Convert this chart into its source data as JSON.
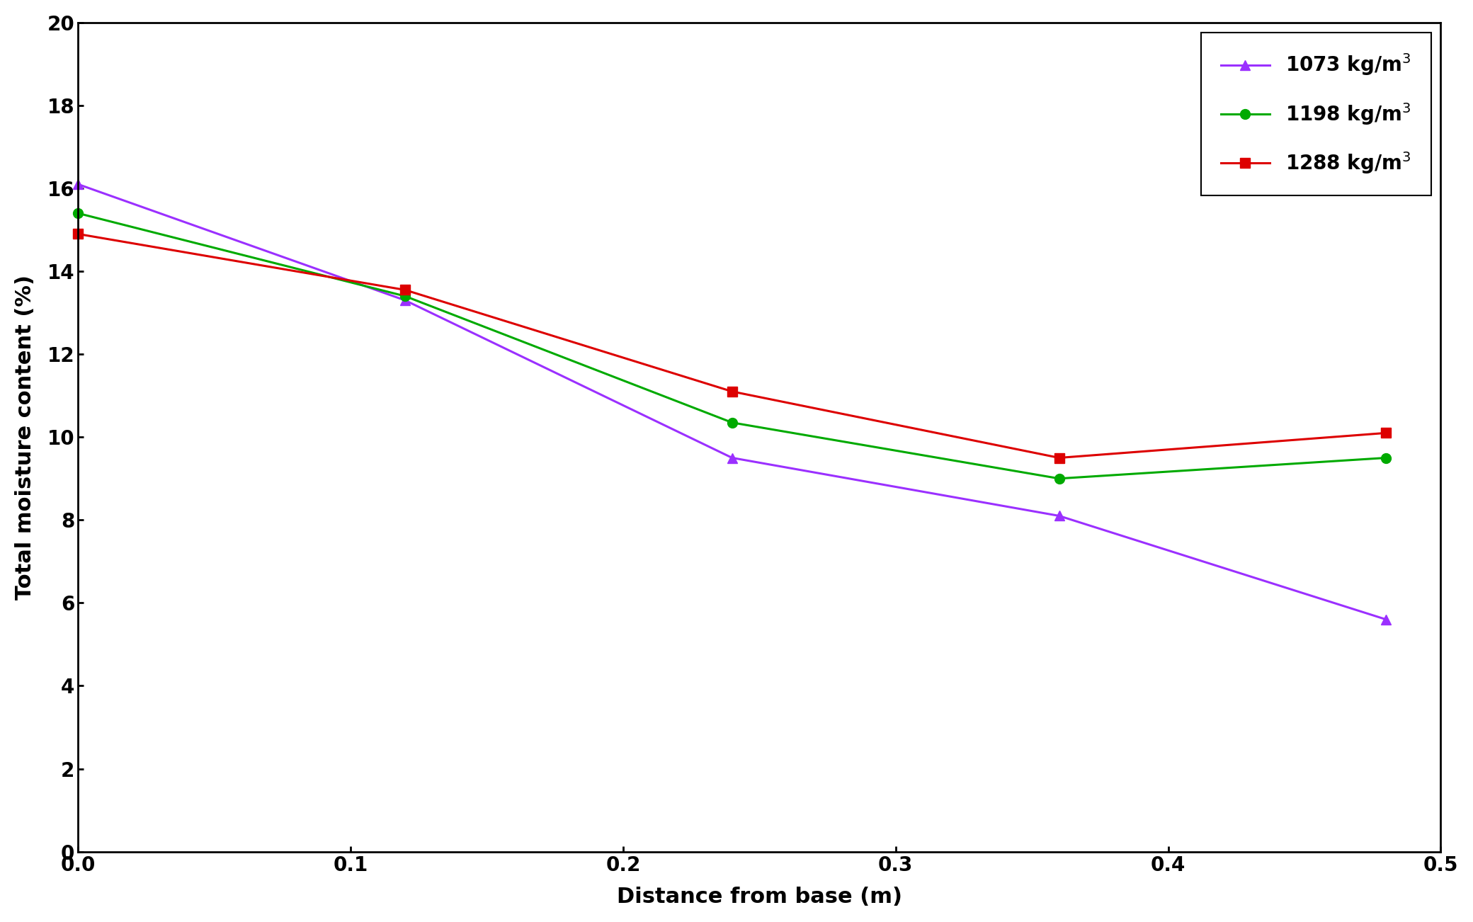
{
  "x": [
    0,
    0.12,
    0.24,
    0.36,
    0.48
  ],
  "series": [
    {
      "label": "1073 kg/m$^3$",
      "y": [
        16.1,
        13.3,
        9.5,
        8.1,
        5.6
      ],
      "color": "#9B30FF",
      "marker": "^",
      "linewidth": 2.2,
      "markersize": 10
    },
    {
      "label": "1198 kg/m$^3$",
      "y": [
        15.4,
        13.4,
        10.35,
        9.0,
        9.5
      ],
      "color": "#00AA00",
      "marker": "o",
      "linewidth": 2.2,
      "markersize": 10
    },
    {
      "label": "1288 kg/m$^3$",
      "y": [
        14.9,
        13.55,
        11.1,
        9.5,
        10.1
      ],
      "color": "#DD0000",
      "marker": "s",
      "linewidth": 2.2,
      "markersize": 10
    }
  ],
  "xlabel": "Distance from base (m)",
  "ylabel": "Total moisture content (%)",
  "xlim": [
    0,
    0.5
  ],
  "ylim": [
    0,
    20
  ],
  "xticks": [
    0,
    0.1,
    0.2,
    0.3,
    0.4,
    0.5
  ],
  "yticks": [
    0,
    2,
    4,
    6,
    8,
    10,
    12,
    14,
    16,
    18,
    20
  ],
  "legend_loc": "upper right",
  "xlabel_fontsize": 22,
  "ylabel_fontsize": 22,
  "tick_fontsize": 20,
  "legend_fontsize": 20,
  "background_color": "#ffffff"
}
